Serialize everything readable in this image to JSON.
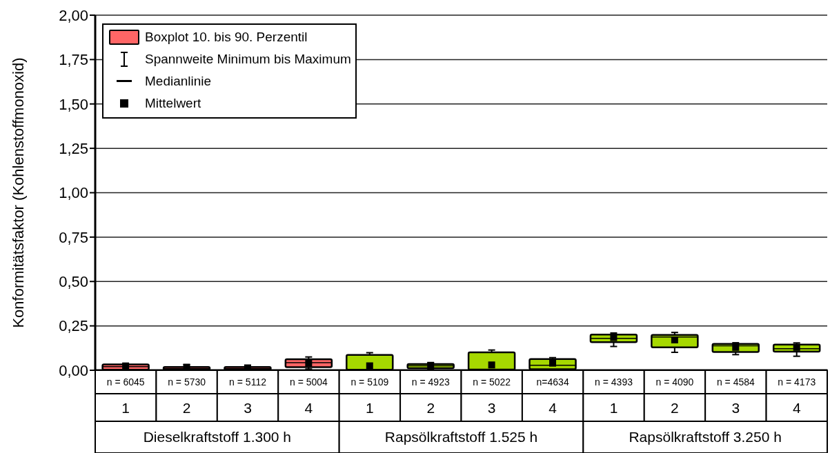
{
  "chart_data": {
    "type": "box",
    "ylabel": "Konformitätsfaktor (Kohlenstoffmonoxid)",
    "categories": [
      "1",
      "2",
      "3",
      "4",
      "1",
      "2",
      "3",
      "4",
      "1",
      "2",
      "3",
      "4"
    ],
    "colors": [
      "#ff6666",
      "#ff6666",
      "#ff6666",
      "#ff6666",
      "#a6d800",
      "#a6d800",
      "#a6d800",
      "#a6d800",
      "#a6d800",
      "#a6d800",
      "#a6d800",
      "#a6d800"
    ],
    "boxes": [
      {
        "low": 0,
        "q1": 0.003,
        "median": 0.02,
        "q3": 0.033,
        "high": 0.04,
        "mean": 0.02
      },
      {
        "low": 0,
        "q1": 0.003,
        "median": 0.01,
        "q3": 0.018,
        "high": 0.033,
        "mean": 0.015
      },
      {
        "low": 0,
        "q1": 0.003,
        "median": 0.01,
        "q3": 0.018,
        "high": 0.028,
        "mean": 0.013
      },
      {
        "low": 0.007,
        "q1": 0.017,
        "median": 0.043,
        "q3": 0.062,
        "high": 0.075,
        "mean": 0.04
      },
      {
        "low": 0,
        "q1": 0.003,
        "median": 0.005,
        "q3": 0.086,
        "high": 0.099,
        "mean": 0.025
      },
      {
        "low": 0.005,
        "q1": 0.012,
        "median": 0.025,
        "q3": 0.035,
        "high": 0.04,
        "mean": 0.028
      },
      {
        "low": 0,
        "q1": 0.002,
        "median": 0.006,
        "q3": 0.101,
        "high": 0.114,
        "mean": 0.03
      },
      {
        "low": 0,
        "q1": 0.006,
        "median": 0.028,
        "q3": 0.063,
        "high": 0.071,
        "mean": 0.04
      },
      {
        "low": 0.134,
        "q1": 0.158,
        "median": 0.18,
        "q3": 0.201,
        "high": 0.21,
        "mean": 0.184
      },
      {
        "low": 0.101,
        "q1": 0.129,
        "median": 0.187,
        "q3": 0.199,
        "high": 0.213,
        "mean": 0.171
      },
      {
        "low": 0.088,
        "q1": 0.103,
        "median": 0.138,
        "q3": 0.149,
        "high": 0.155,
        "mean": 0.129
      },
      {
        "low": 0.079,
        "q1": 0.105,
        "median": 0.121,
        "q3": 0.145,
        "high": 0.154,
        "mean": 0.129
      }
    ],
    "ylim": [
      0,
      2
    ],
    "yticks": [
      {
        "value": 0,
        "label": "0,00"
      },
      {
        "value": 0.25,
        "label": "0,25"
      },
      {
        "value": 0.5,
        "label": "0,50"
      },
      {
        "value": 0.75,
        "label": "0,75"
      },
      {
        "value": 1,
        "label": "1,00"
      },
      {
        "value": 1.25,
        "label": "1,25"
      },
      {
        "value": 1.5,
        "label": "1,50"
      },
      {
        "value": 1.75,
        "label": "1,75"
      },
      {
        "value": 2,
        "label": "2,00"
      }
    ],
    "grid": "y",
    "annotations": [
      "Boxplot 10. bis 90. Perzentil",
      "Spannweite Minimum bis Maximum",
      "Medianlinie",
      "Mittelwert",
      "n = 6045",
      "n = 5730",
      "n = 5112",
      "n = 5004",
      "n = 5109",
      "n = 4923",
      "n = 5022",
      "n=4634",
      "n = 4393",
      "n = 4090",
      "n = 4584",
      "n = 4173",
      "Dieselkraftstoff 1.300 h",
      "Rapsölkraftstoff 1.525 h",
      "Rapsölkraftstoff 3.250 h"
    ]
  }
}
